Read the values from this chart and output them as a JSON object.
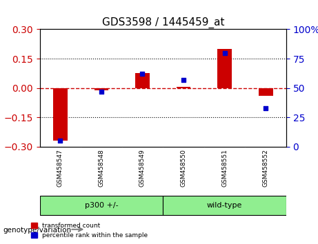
{
  "title": "GDS3598 / 1445459_at",
  "samples": [
    "GSM458547",
    "GSM458548",
    "GSM458549",
    "GSM458550",
    "GSM458551",
    "GSM458552"
  ],
  "red_values": [
    -0.27,
    -0.01,
    0.075,
    0.005,
    0.2,
    -0.04
  ],
  "blue_values": [
    5,
    47,
    62,
    57,
    80,
    33
  ],
  "ylim_left": [
    -0.3,
    0.3
  ],
  "ylim_right": [
    0,
    100
  ],
  "yticks_left": [
    -0.3,
    -0.15,
    0,
    0.15,
    0.3
  ],
  "yticks_right": [
    0,
    25,
    50,
    75,
    100
  ],
  "groups": [
    {
      "label": "p300 +/-",
      "indices": [
        0,
        1,
        2
      ],
      "color": "#90EE90"
    },
    {
      "label": "wild-type",
      "indices": [
        3,
        4,
        5
      ],
      "color": "#90EE90"
    }
  ],
  "group_divider": 2.5,
  "bar_color": "#CC0000",
  "point_color": "#0000CC",
  "bg_color": "#ffffff",
  "plot_bg": "#ffffff",
  "tick_label_bg": "#d3d3d3",
  "grid_color": "#000000",
  "hline_color": "#CC0000",
  "legend_red": "transformed count",
  "legend_blue": "percentile rank within the sample",
  "genotype_label": "genotype/variation"
}
